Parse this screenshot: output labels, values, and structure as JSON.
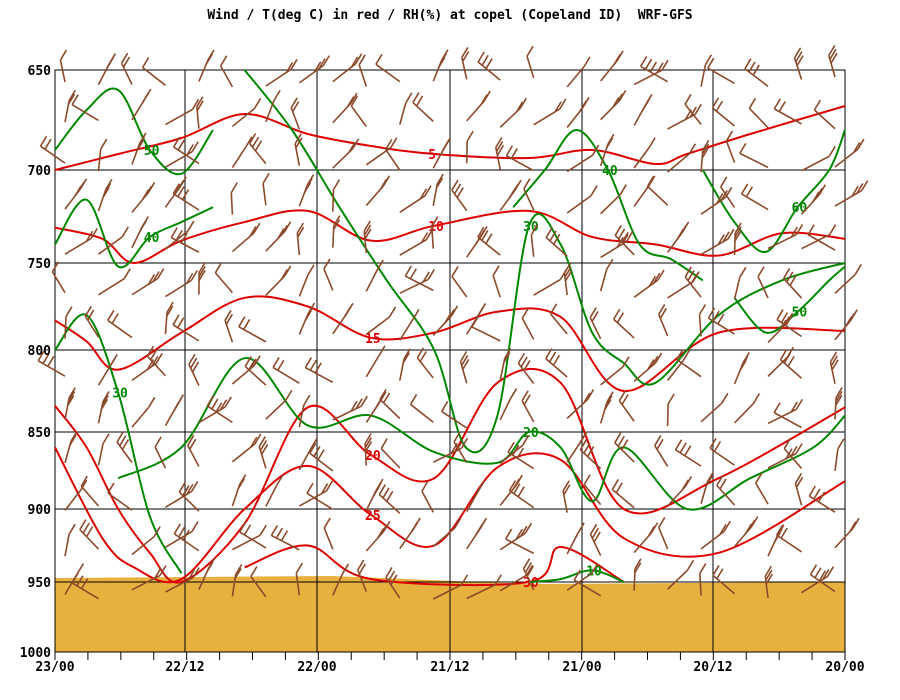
{
  "chart_data": {
    "type": "line",
    "title": "Wind / T(deg C) in red / RH(%) at copel (Copeland ID)  WRF-GFS",
    "y_axis": {
      "scale": "pressure",
      "range": [
        650,
        1000
      ],
      "ticks": [
        650,
        700,
        750,
        800,
        850,
        900,
        950,
        1000
      ]
    },
    "x_axis": {
      "direction": "reversed",
      "ticks": [
        "23/00",
        "22/12",
        "22/00",
        "21/12",
        "21/00",
        "20/12",
        "20/00"
      ]
    },
    "ground_level": 950,
    "colors": {
      "temperature": "#dd0000",
      "rh": "#008800",
      "wind": "#8b4a2b",
      "ground": "#e8b13f",
      "grid": "#000000"
    },
    "series": [
      {
        "name": "T(deg C)",
        "contours": [
          {
            "label": "5",
            "points": [
              [
                0,
                700
              ],
              [
                8,
                692
              ],
              [
                16,
                684
              ],
              [
                24,
                672
              ],
              [
                32,
                682
              ],
              [
                40,
                688
              ],
              [
                48,
                692
              ],
              [
                60,
                694
              ],
              [
                68,
                690
              ],
              [
                76,
                697
              ],
              [
                80,
                692
              ],
              [
                88,
                682
              ],
              [
                100,
                668
              ]
            ]
          },
          {
            "label": "10",
            "points": [
              [
                0,
                731
              ],
              [
                6,
                737
              ],
              [
                10,
                750
              ],
              [
                16,
                738
              ],
              [
                24,
                728
              ],
              [
                32,
                722
              ],
              [
                40,
                738
              ],
              [
                48,
                730
              ],
              [
                60,
                722
              ],
              [
                68,
                736
              ],
              [
                76,
                740
              ],
              [
                84,
                746
              ],
              [
                92,
                734
              ],
              [
                100,
                737
              ]
            ]
          },
          {
            "label": "15",
            "points": [
              [
                0,
                783
              ],
              [
                4,
                795
              ],
              [
                8,
                812
              ],
              [
                16,
                790
              ],
              [
                24,
                770
              ],
              [
                32,
                775
              ],
              [
                40,
                793
              ],
              [
                48,
                790
              ],
              [
                56,
                778
              ],
              [
                64,
                781
              ],
              [
                72,
                825
              ],
              [
                84,
                790
              ],
              [
                100,
                789
              ]
            ]
          },
          {
            "label": "20",
            "points": [
              [
                0,
                834
              ],
              [
                4,
                860
              ],
              [
                8,
                900
              ],
              [
                12,
                930
              ],
              [
                16,
                950
              ],
              [
                24,
                910
              ],
              [
                32,
                835
              ],
              [
                40,
                865
              ],
              [
                48,
                880
              ],
              [
                56,
                820
              ],
              [
                64,
                820
              ],
              [
                72,
                900
              ],
              [
                84,
                880
              ],
              [
                100,
                835
              ]
            ]
          },
          {
            "label": "25",
            "points": [
              [
                0,
                860
              ],
              [
                6,
                920
              ],
              [
                10,
                940
              ],
              [
                16,
                948
              ],
              [
                24,
                900
              ],
              [
                32,
                872
              ],
              [
                40,
                904
              ],
              [
                48,
                925
              ],
              [
                56,
                873
              ],
              [
                64,
                868
              ],
              [
                72,
                920
              ],
              [
                84,
                930
              ],
              [
                100,
                882
              ]
            ]
          },
          {
            "label": "30",
            "points": [
              [
                24,
                940
              ],
              [
                32,
                925
              ],
              [
                40,
                948
              ],
              [
                60,
                950
              ],
              [
                64,
                926
              ],
              [
                72,
                950
              ]
            ]
          }
        ]
      },
      {
        "name": "RH(%)",
        "contours": [
          {
            "label": "50",
            "points": [
              [
                0,
                690
              ],
              [
                4,
                670
              ],
              [
                8,
                660
              ],
              [
                12,
                690
              ],
              [
                16,
                702
              ],
              [
                20,
                680
              ]
            ]
          },
          {
            "label": "40",
            "points": [
              [
                0,
                740
              ],
              [
                4,
                716
              ],
              [
                8,
                752
              ],
              [
                12,
                736
              ],
              [
                16,
                728
              ],
              [
                20,
                720
              ]
            ]
          },
          {
            "label": "30",
            "points": [
              [
                24,
                650
              ],
              [
                30,
                680
              ],
              [
                36,
                720
              ],
              [
                42,
                760
              ],
              [
                48,
                800
              ],
              [
                52,
                860
              ],
              [
                56,
                840
              ],
              [
                60,
                730
              ],
              [
                64,
                740
              ],
              [
                68,
                790
              ],
              [
                72,
                808
              ],
              [
                76,
                820
              ],
              [
                84,
                780
              ],
              [
                92,
                760
              ],
              [
                100,
                750
              ]
            ]
          },
          {
            "label": "20",
            "points": [
              [
                8,
                880
              ],
              [
                16,
                860
              ],
              [
                24,
                805
              ],
              [
                32,
                846
              ],
              [
                40,
                840
              ],
              [
                48,
                863
              ],
              [
                56,
                870
              ],
              [
                60,
                850
              ],
              [
                64,
                860
              ],
              [
                68,
                895
              ],
              [
                72,
                860
              ],
              [
                80,
                900
              ],
              [
                88,
                880
              ],
              [
                96,
                860
              ],
              [
                100,
                840
              ]
            ]
          },
          {
            "label": "30",
            "points": [
              [
                0,
                800
              ],
              [
                4,
                780
              ],
              [
                8,
                826
              ],
              [
                12,
                905
              ],
              [
                16,
                944
              ]
            ]
          },
          {
            "label": "60",
            "points": [
              [
                82,
                700
              ],
              [
                86,
                728
              ],
              [
                90,
                744
              ],
              [
                94,
                720
              ],
              [
                98,
                700
              ],
              [
                100,
                680
              ]
            ]
          },
          {
            "label": "50",
            "points": [
              [
                86,
                770
              ],
              [
                90,
                790
              ],
              [
                94,
                778
              ],
              [
                98,
                760
              ],
              [
                100,
                752
              ]
            ]
          },
          {
            "label": "40",
            "points": [
              [
                58,
                720
              ],
              [
                62,
                700
              ],
              [
                66,
                680
              ],
              [
                70,
                700
              ],
              [
                74,
                740
              ],
              [
                78,
                748
              ],
              [
                82,
                760
              ]
            ]
          },
          {
            "label": "10",
            "points": [
              [
                60,
                950
              ],
              [
                64,
                948
              ],
              [
                68,
                942
              ],
              [
                72,
                950
              ]
            ]
          }
        ]
      }
    ]
  },
  "chart_labels": {
    "y_ticks": [
      "650",
      "700",
      "750",
      "800",
      "850",
      "900",
      "950",
      "1000"
    ],
    "x_ticks": [
      "23/00",
      "22/12",
      "22/00",
      "21/12",
      "21/00",
      "20/12",
      "20/00"
    ]
  }
}
